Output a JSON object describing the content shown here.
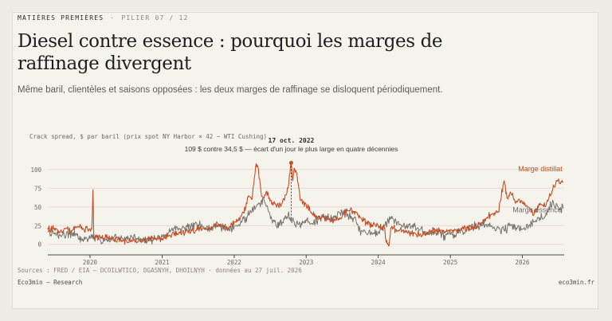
{
  "header": {
    "kicker": "MATIÈRES PREMIÈRES",
    "separator": "·",
    "pillar": "PILIER 07 / 12"
  },
  "title": "Diesel contre essence : pourquoi les marges de raffinage divergent",
  "subtitle": "Même baril, clientèles et saisons opposées : les deux marges de raffinage se disloquent périodiquement.",
  "footer": {
    "sources": "Sources : FRED / EIA — DCOILWTICO, DGASNYH, DHOILNYH · données au 27 juil. 2026",
    "brand": "Eco3min — Research",
    "site": "eco3min.fr"
  },
  "colors": {
    "distillate": "#c0512b",
    "gasoline": "#76736e",
    "background": "#f6f3ec"
  },
  "chart_data": {
    "type": "line",
    "ylabel": "Crack spread, $ par baril (prix spot NY Harbor × 42 − WTI Cushing)",
    "y_ticks": [
      0,
      25,
      50,
      75,
      100
    ],
    "ylim": [
      -12,
      118
    ],
    "x_range": [
      "2019-06-01",
      "2026-08-01"
    ],
    "x_ticks": [
      {
        "date": "2020-01-01",
        "label": "2020"
      },
      {
        "date": "2021-01-01",
        "label": "2021"
      },
      {
        "date": "2022-01-01",
        "label": "2022"
      },
      {
        "date": "2023-01-01",
        "label": "2023"
      },
      {
        "date": "2024-01-01",
        "label": "2024"
      },
      {
        "date": "2025-01-01",
        "label": "2025"
      },
      {
        "date": "2026-01-01",
        "label": "2026"
      }
    ],
    "grid": true,
    "annotation": {
      "date": "2022-10-17",
      "label": "17 oct. 2022",
      "text": "109 $ contre 34,5 $ — écart d'un jour le plus large en quatre décennies",
      "distillate_value": 109,
      "gasoline_value": 34.5
    },
    "series": [
      {
        "name": "Marge distillat",
        "color": "#c0512b",
        "points": [
          [
            "2019-06-01",
            22
          ],
          [
            "2019-07-01",
            20
          ],
          [
            "2019-08-01",
            16
          ],
          [
            "2019-09-01",
            21
          ],
          [
            "2019-10-01",
            18
          ],
          [
            "2019-11-01",
            24
          ],
          [
            "2019-12-01",
            20
          ],
          [
            "2020-01-01",
            19
          ],
          [
            "2020-01-10",
            20
          ],
          [
            "2020-01-16",
            73
          ],
          [
            "2020-01-20",
            8
          ],
          [
            "2020-02-01",
            10
          ],
          [
            "2020-03-01",
            8
          ],
          [
            "2020-04-01",
            9
          ],
          [
            "2020-05-01",
            6
          ],
          [
            "2020-06-01",
            7
          ],
          [
            "2020-07-01",
            5
          ],
          [
            "2020-08-01",
            4
          ],
          [
            "2020-09-01",
            4
          ],
          [
            "2020-10-01",
            5
          ],
          [
            "2020-11-01",
            6
          ],
          [
            "2020-12-01",
            7
          ],
          [
            "2021-01-01",
            8
          ],
          [
            "2021-02-01",
            12
          ],
          [
            "2021-03-01",
            14
          ],
          [
            "2021-04-01",
            15
          ],
          [
            "2021-05-01",
            17
          ],
          [
            "2021-06-01",
            18
          ],
          [
            "2021-07-01",
            20
          ],
          [
            "2021-08-01",
            21
          ],
          [
            "2021-09-01",
            22
          ],
          [
            "2021-10-01",
            27
          ],
          [
            "2021-11-01",
            24
          ],
          [
            "2021-12-01",
            22
          ],
          [
            "2022-01-01",
            30
          ],
          [
            "2022-02-01",
            35
          ],
          [
            "2022-03-01",
            50
          ],
          [
            "2022-03-15",
            65
          ],
          [
            "2022-04-01",
            60
          ],
          [
            "2022-04-20",
            105
          ],
          [
            "2022-05-01",
            104
          ],
          [
            "2022-05-10",
            88
          ],
          [
            "2022-05-20",
            64
          ],
          [
            "2022-06-01",
            62
          ],
          [
            "2022-06-20",
            70
          ],
          [
            "2022-07-01",
            58
          ],
          [
            "2022-08-01",
            52
          ],
          [
            "2022-09-01",
            55
          ],
          [
            "2022-10-01",
            75
          ],
          [
            "2022-10-17",
            109
          ],
          [
            "2022-10-25",
            85
          ],
          [
            "2022-11-01",
            102
          ],
          [
            "2022-11-15",
            95
          ],
          [
            "2022-12-01",
            60
          ],
          [
            "2023-01-01",
            53
          ],
          [
            "2023-02-01",
            40
          ],
          [
            "2023-03-01",
            37
          ],
          [
            "2023-04-01",
            36
          ],
          [
            "2023-05-01",
            32
          ],
          [
            "2023-06-01",
            33
          ],
          [
            "2023-07-01",
            36
          ],
          [
            "2023-08-01",
            45
          ],
          [
            "2023-09-01",
            44
          ],
          [
            "2023-10-01",
            36
          ],
          [
            "2023-11-01",
            29
          ],
          [
            "2023-12-01",
            26
          ],
          [
            "2024-01-01",
            25
          ],
          [
            "2024-02-01",
            23
          ],
          [
            "2024-02-10",
            3
          ],
          [
            "2024-02-25",
            -2
          ],
          [
            "2024-03-05",
            22
          ],
          [
            "2024-04-01",
            20
          ],
          [
            "2024-05-01",
            18
          ],
          [
            "2024-06-01",
            16
          ],
          [
            "2024-07-01",
            15
          ],
          [
            "2024-08-01",
            14
          ],
          [
            "2024-09-01",
            15
          ],
          [
            "2024-10-01",
            17
          ],
          [
            "2024-11-01",
            18
          ],
          [
            "2024-12-01",
            16
          ],
          [
            "2025-01-01",
            19
          ],
          [
            "2025-02-01",
            18
          ],
          [
            "2025-03-01",
            20
          ],
          [
            "2025-04-01",
            22
          ],
          [
            "2025-05-01",
            24
          ],
          [
            "2025-06-01",
            26
          ],
          [
            "2025-07-01",
            35
          ],
          [
            "2025-08-01",
            40
          ],
          [
            "2025-09-01",
            44
          ],
          [
            "2025-10-01",
            85
          ],
          [
            "2025-10-15",
            62
          ],
          [
            "2025-11-01",
            70
          ],
          [
            "2025-12-01",
            58
          ],
          [
            "2026-01-01",
            55
          ],
          [
            "2026-02-01",
            50
          ],
          [
            "2026-03-01",
            40
          ],
          [
            "2026-04-01",
            55
          ],
          [
            "2026-05-01",
            52
          ],
          [
            "2026-06-01",
            72
          ],
          [
            "2026-07-01",
            85
          ],
          [
            "2026-07-27",
            83
          ]
        ]
      },
      {
        "name": "Marge essence",
        "color": "#76736e",
        "points": [
          [
            "2019-06-01",
            16
          ],
          [
            "2019-07-01",
            14
          ],
          [
            "2019-08-01",
            12
          ],
          [
            "2019-09-01",
            12
          ],
          [
            "2019-10-01",
            14
          ],
          [
            "2019-11-01",
            10
          ],
          [
            "2019-12-01",
            6
          ],
          [
            "2020-01-01",
            8
          ],
          [
            "2020-02-01",
            10
          ],
          [
            "2020-03-01",
            2
          ],
          [
            "2020-04-01",
            4
          ],
          [
            "2020-05-01",
            10
          ],
          [
            "2020-06-01",
            9
          ],
          [
            "2020-07-01",
            8
          ],
          [
            "2020-08-01",
            9
          ],
          [
            "2020-09-01",
            7
          ],
          [
            "2020-10-01",
            8
          ],
          [
            "2020-11-01",
            6
          ],
          [
            "2020-12-01",
            8
          ],
          [
            "2021-01-01",
            10
          ],
          [
            "2021-02-01",
            15
          ],
          [
            "2021-03-01",
            22
          ],
          [
            "2021-04-01",
            20
          ],
          [
            "2021-05-01",
            24
          ],
          [
            "2021-06-01",
            25
          ],
          [
            "2021-07-01",
            26
          ],
          [
            "2021-08-01",
            23
          ],
          [
            "2021-09-01",
            22
          ],
          [
            "2021-10-01",
            26
          ],
          [
            "2021-11-01",
            22
          ],
          [
            "2021-12-01",
            19
          ],
          [
            "2022-01-01",
            24
          ],
          [
            "2022-02-01",
            28
          ],
          [
            "2022-03-01",
            36
          ],
          [
            "2022-04-01",
            45
          ],
          [
            "2022-05-01",
            53
          ],
          [
            "2022-06-01",
            60
          ],
          [
            "2022-07-01",
            40
          ],
          [
            "2022-08-01",
            25
          ],
          [
            "2022-09-01",
            30
          ],
          [
            "2022-10-01",
            40
          ],
          [
            "2022-10-17",
            34.5
          ],
          [
            "2022-11-01",
            30
          ],
          [
            "2022-12-01",
            24
          ],
          [
            "2023-01-01",
            33
          ],
          [
            "2023-02-01",
            28
          ],
          [
            "2023-03-01",
            33
          ],
          [
            "2023-04-01",
            38
          ],
          [
            "2023-05-01",
            33
          ],
          [
            "2023-06-01",
            38
          ],
          [
            "2023-07-01",
            45
          ],
          [
            "2023-08-01",
            40
          ],
          [
            "2023-09-01",
            35
          ],
          [
            "2023-10-01",
            20
          ],
          [
            "2023-11-01",
            15
          ],
          [
            "2023-12-01",
            14
          ],
          [
            "2024-01-01",
            17
          ],
          [
            "2024-02-01",
            25
          ],
          [
            "2024-03-01",
            33
          ],
          [
            "2024-04-01",
            30
          ],
          [
            "2024-05-01",
            23
          ],
          [
            "2024-06-01",
            24
          ],
          [
            "2024-07-01",
            24
          ],
          [
            "2024-08-01",
            20
          ],
          [
            "2024-09-01",
            14
          ],
          [
            "2024-10-01",
            16
          ],
          [
            "2024-11-01",
            14
          ],
          [
            "2024-12-01",
            12
          ],
          [
            "2025-01-01",
            13
          ],
          [
            "2025-02-01",
            15
          ],
          [
            "2025-03-01",
            18
          ],
          [
            "2025-04-01",
            22
          ],
          [
            "2025-05-01",
            24
          ],
          [
            "2025-06-01",
            25
          ],
          [
            "2025-07-01",
            27
          ],
          [
            "2025-08-01",
            24
          ],
          [
            "2025-09-01",
            22
          ],
          [
            "2025-10-01",
            18
          ],
          [
            "2025-11-01",
            25
          ],
          [
            "2025-12-01",
            22
          ],
          [
            "2026-01-01",
            20
          ],
          [
            "2026-02-01",
            24
          ],
          [
            "2026-03-01",
            30
          ],
          [
            "2026-04-01",
            35
          ],
          [
            "2026-05-01",
            42
          ],
          [
            "2026-06-01",
            55
          ],
          [
            "2026-07-01",
            50
          ],
          [
            "2026-07-27",
            48
          ]
        ]
      }
    ]
  }
}
